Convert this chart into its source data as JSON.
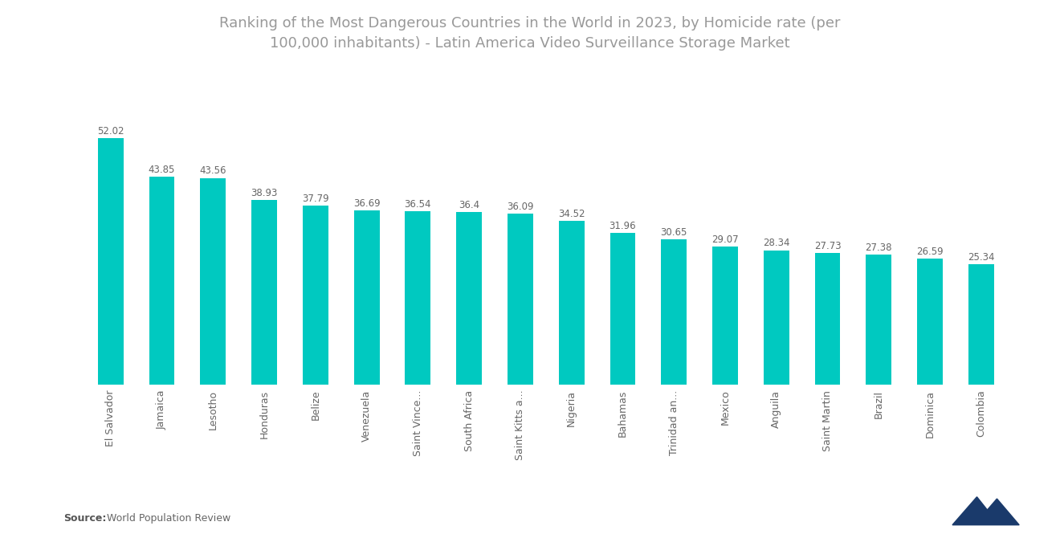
{
  "title_line1": "Ranking of the Most Dangerous Countries in the World in 2023, by Homicide rate (per",
  "title_line2": "100,000 inhabitants) - Latin America Video Surveillance Storage Market",
  "categories": [
    "El Salvador",
    "Jamaica",
    "Lesotho",
    "Honduras",
    "Belize",
    "Venezuela",
    "Saint Vince...",
    "South Africa",
    "Saint Kitts a...",
    "Nigeria",
    "Bahamas",
    "Trinidad an...",
    "Mexico",
    "Anguila",
    "Saint Martin",
    "Brazil",
    "Dominica",
    "Colombia"
  ],
  "values": [
    52.02,
    43.85,
    43.56,
    38.93,
    37.79,
    36.69,
    36.54,
    36.4,
    36.09,
    34.52,
    31.96,
    30.65,
    29.07,
    28.34,
    27.73,
    27.38,
    26.59,
    25.34
  ],
  "bar_color": "#00C9C0",
  "background_color": "#ffffff",
  "source_bold": "Source:",
  "source_rest": "  World Population Review",
  "title_fontsize": 13,
  "label_fontsize": 8.5,
  "tick_fontsize": 9,
  "source_fontsize": 9,
  "ylim": [
    0,
    62
  ]
}
